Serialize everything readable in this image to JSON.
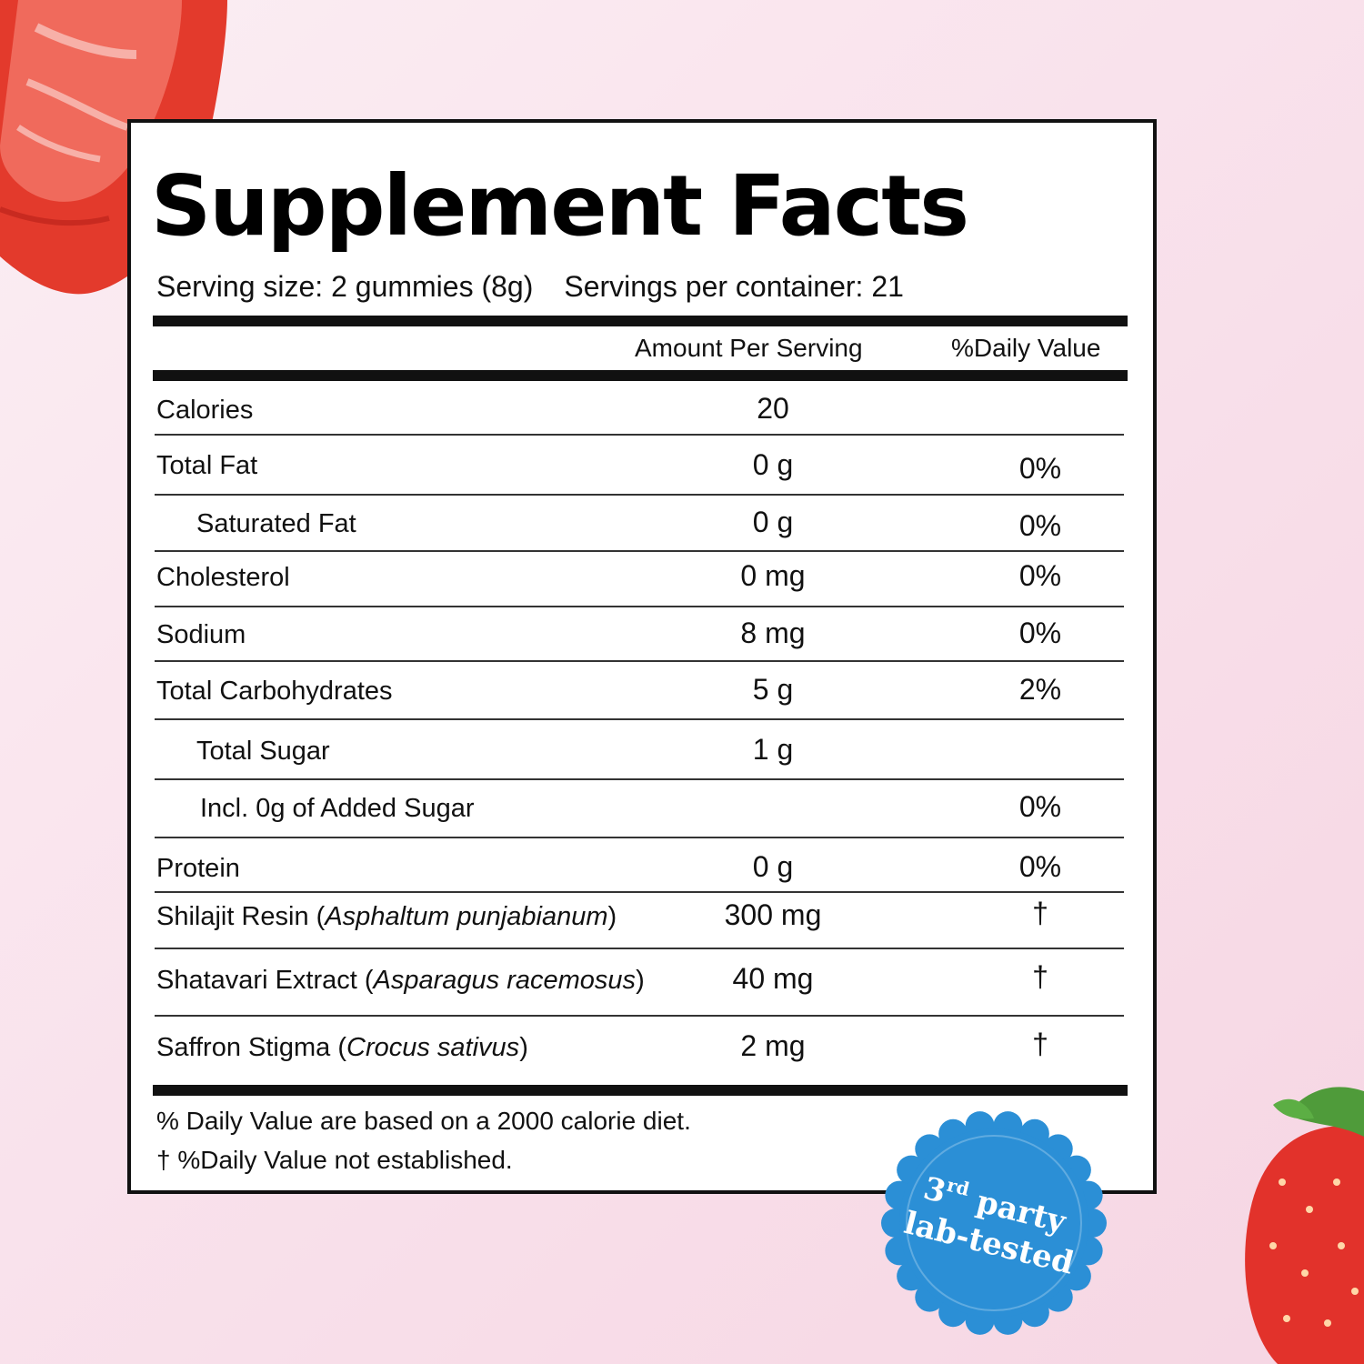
{
  "title": "Supplement Facts",
  "serving": {
    "size": "Serving size: 2 gummies (8g)",
    "per_container": "Servings per container: 21"
  },
  "columns": {
    "amount": "Amount Per Serving",
    "dv": "%Daily Value"
  },
  "rows": [
    {
      "name": "Calories",
      "amount": "20",
      "dv": ""
    },
    {
      "name": "Total Fat",
      "amount": "0 g",
      "dv": "0%"
    },
    {
      "name": "Saturated Fat",
      "amount": "0 g",
      "dv": "0%"
    },
    {
      "name": "Cholesterol",
      "amount": "0 mg",
      "dv": "0%"
    },
    {
      "name": "Sodium",
      "amount": "8 mg",
      "dv": "0%"
    },
    {
      "name": "Total Carbohydrates",
      "amount": "5 g",
      "dv": "2%"
    },
    {
      "name": "Total Sugar",
      "amount": "1 g",
      "dv": ""
    },
    {
      "name": "Incl. 0g of Added Sugar",
      "amount": "",
      "dv": "0%"
    },
    {
      "name": "Protein",
      "amount": "0 g",
      "dv": "0%"
    },
    {
      "name": "Shilajit Resin (",
      "latin": "Asphaltum punjabianum",
      "close": ")",
      "amount": "300 mg",
      "dv": "†"
    },
    {
      "name": "Shatavari Extract (",
      "latin": "Asparagus racemosus",
      "close": ")",
      "amount": "40 mg",
      "dv": "†"
    },
    {
      "name": "Saffron Stigma (",
      "latin": "Crocus sativus",
      "close": ")",
      "amount": "2 mg",
      "dv": "†"
    }
  ],
  "footnotes": [
    "% Daily Value are based on a 2000 calorie diet.",
    "† %Daily Value not established."
  ],
  "badge": {
    "line1_main": "3",
    "line1_sup": "rd",
    "line1_rest": " party",
    "line2": "lab-tested"
  },
  "colors": {
    "badge_blue": "#2b8fd6",
    "badge_text": "#ffffff",
    "strawberry": "#e8342a"
  }
}
